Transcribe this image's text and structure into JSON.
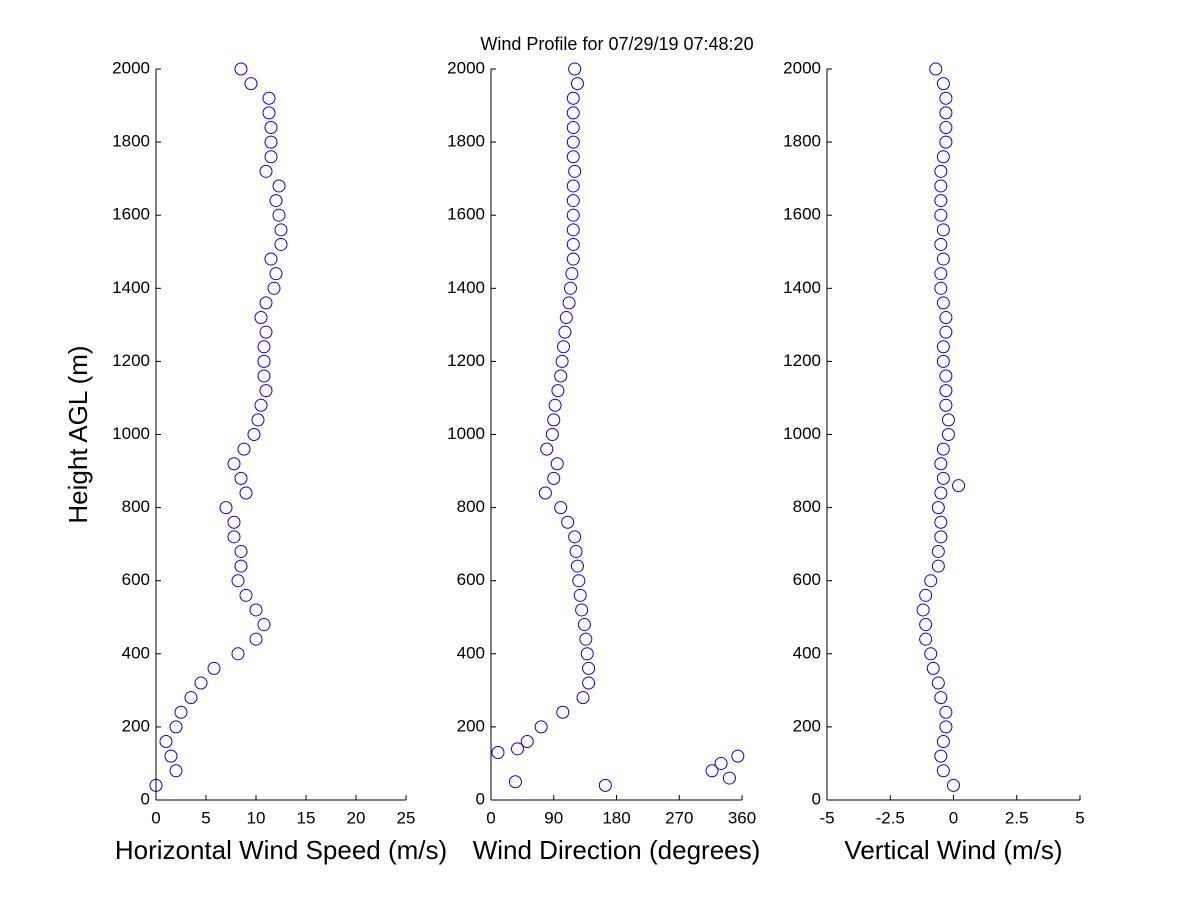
{
  "title": "Wind Profile for  07/29/19 07:48:20",
  "chart_data": [
    {
      "type": "scatter",
      "xlabel": "Horizontal Wind Speed (m/s)",
      "ylabel": "Height AGL (m)",
      "color": "#0000ff",
      "xlim": [
        0,
        25
      ],
      "xticks": [
        0,
        5,
        10,
        15,
        20,
        25
      ],
      "ylim": [
        0,
        2000
      ],
      "yticks": [
        0,
        200,
        400,
        600,
        800,
        1000,
        1200,
        1400,
        1600,
        1800,
        2000
      ],
      "x": [
        0.0,
        2.0,
        1.5,
        1.0,
        2.0,
        2.5,
        3.5,
        4.5,
        5.8,
        8.2,
        10.0,
        10.8,
        10.0,
        9.0,
        8.2,
        8.5,
        8.5,
        7.8,
        7.8,
        7.0,
        9.0,
        8.5,
        7.8,
        8.8,
        9.8,
        10.2,
        10.5,
        11.0,
        10.8,
        10.8,
        10.8,
        11.0,
        10.5,
        11.0,
        11.8,
        12.0,
        11.5,
        12.5,
        12.5,
        12.3,
        12.0,
        12.3,
        11.0,
        11.5,
        11.5,
        11.5,
        11.3,
        11.3,
        9.5,
        8.5
      ],
      "values": [
        40,
        80,
        120,
        160,
        200,
        240,
        280,
        320,
        360,
        400,
        440,
        480,
        520,
        560,
        600,
        640,
        680,
        720,
        760,
        800,
        840,
        880,
        920,
        960,
        1000,
        1040,
        1080,
        1120,
        1160,
        1200,
        1240,
        1280,
        1320,
        1360,
        1400,
        1440,
        1480,
        1520,
        1560,
        1600,
        1640,
        1680,
        1720,
        1760,
        1800,
        1840,
        1880,
        1920,
        1960,
        2000
      ]
    },
    {
      "type": "scatter",
      "xlabel": "Wind Direction (degrees)",
      "color": "#0000ff",
      "xlim": [
        0,
        360
      ],
      "xticks": [
        0,
        90,
        180,
        270,
        360
      ],
      "ylim": [
        0,
        2000
      ],
      "yticks": [
        0,
        200,
        400,
        600,
        800,
        1000,
        1200,
        1400,
        1600,
        1800,
        2000
      ],
      "x": [
        164,
        35,
        342,
        317,
        330,
        354,
        10,
        38,
        52,
        72,
        103,
        132,
        140,
        140,
        138,
        136,
        134,
        130,
        128,
        126,
        124,
        122,
        120,
        110,
        100,
        78,
        90,
        95,
        80,
        88,
        90,
        92,
        96,
        100,
        102,
        104,
        106,
        108,
        112,
        114,
        116,
        118,
        118,
        118,
        118,
        118,
        118,
        120,
        118,
        118,
        118,
        118,
        118,
        124,
        120
      ],
      "values": [
        40,
        50,
        60,
        80,
        100,
        120,
        130,
        140,
        160,
        200,
        240,
        280,
        320,
        360,
        400,
        440,
        480,
        520,
        560,
        600,
        640,
        680,
        720,
        760,
        800,
        840,
        880,
        920,
        960,
        1000,
        1040,
        1080,
        1120,
        1160,
        1200,
        1240,
        1280,
        1320,
        1360,
        1400,
        1440,
        1480,
        1520,
        1560,
        1600,
        1640,
        1680,
        1720,
        1760,
        1800,
        1840,
        1880,
        1920,
        1960,
        2000
      ]
    },
    {
      "type": "scatter",
      "xlabel": "Vertical Wind (m/s)",
      "color": "#0000ff",
      "xlim": [
        -5,
        5
      ],
      "xticks": [
        -5,
        -2.5,
        0,
        2.5,
        5
      ],
      "ylim": [
        0,
        2000
      ],
      "yticks": [
        0,
        200,
        400,
        600,
        800,
        1000,
        1200,
        1400,
        1600,
        1800,
        2000
      ],
      "x": [
        0.0,
        -0.4,
        -0.5,
        -0.4,
        -0.3,
        -0.3,
        -0.5,
        -0.6,
        -0.8,
        -0.9,
        -1.1,
        -1.1,
        -1.2,
        -1.1,
        -0.9,
        -0.6,
        -0.6,
        -0.5,
        -0.5,
        -0.6,
        -0.5,
        0.2,
        -0.4,
        -0.5,
        -0.4,
        -0.2,
        -0.2,
        -0.3,
        -0.3,
        -0.3,
        -0.4,
        -0.4,
        -0.3,
        -0.3,
        -0.4,
        -0.5,
        -0.5,
        -0.4,
        -0.5,
        -0.4,
        -0.5,
        -0.5,
        -0.5,
        -0.5,
        -0.4,
        -0.3,
        -0.3,
        -0.3,
        -0.3,
        -0.4,
        -0.7
      ],
      "values": [
        40,
        80,
        120,
        160,
        200,
        240,
        280,
        320,
        360,
        400,
        440,
        480,
        520,
        560,
        600,
        640,
        680,
        720,
        760,
        800,
        840,
        860,
        880,
        920,
        960,
        1000,
        1040,
        1080,
        1120,
        1160,
        1200,
        1240,
        1280,
        1320,
        1360,
        1400,
        1440,
        1480,
        1520,
        1560,
        1600,
        1640,
        1680,
        1720,
        1760,
        1800,
        1840,
        1880,
        1920,
        1960,
        2000
      ]
    }
  ]
}
